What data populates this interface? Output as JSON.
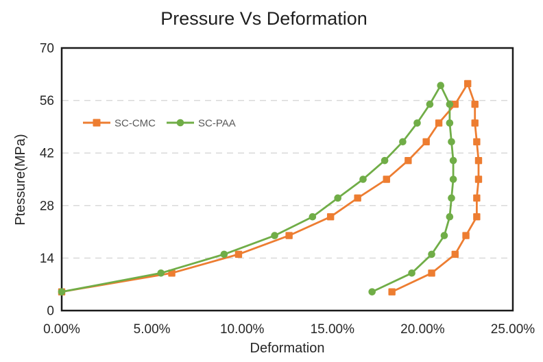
{
  "page": {
    "background_color": "#ffffff"
  },
  "chart_data": {
    "type": "line",
    "title": "Pressure Vs Deformation",
    "xlabel": "Deformation",
    "ylabel": "Ptessure(MPa)",
    "x_unit": "percent",
    "y_unit": "MPa",
    "xlim": [
      0,
      25
    ],
    "ylim": [
      0,
      70
    ],
    "x_tick_values": [
      0,
      5,
      10,
      15,
      20,
      25
    ],
    "x_tick_labels": [
      "0.00%",
      "5.00%",
      "10.00%",
      "15.00%",
      "20.00%",
      "25.00%"
    ],
    "y_tick_values": [
      0,
      14,
      28,
      42,
      56,
      70
    ],
    "y_tick_labels": [
      "0",
      "14",
      "28",
      "42",
      "56",
      "70"
    ],
    "grid": "horizontal dashed gridlines",
    "gridline_values": [
      14,
      28,
      42,
      56
    ],
    "gridline_color": "#d6d6d6",
    "plot_border_color": "#1a1a1a",
    "legend_position": "inside upper-left",
    "series": [
      {
        "name": "SC-CMC",
        "color": "#ED7D31",
        "marker": "square",
        "points": [
          [
            0.0,
            5
          ],
          [
            6.1,
            10
          ],
          [
            9.8,
            15
          ],
          [
            12.6,
            20
          ],
          [
            14.9,
            25
          ],
          [
            16.4,
            30
          ],
          [
            18.0,
            35
          ],
          [
            19.2,
            40
          ],
          [
            20.2,
            45
          ],
          [
            20.9,
            50
          ],
          [
            21.8,
            55
          ],
          [
            22.5,
            60.5
          ],
          [
            22.9,
            55
          ],
          [
            22.9,
            50
          ],
          [
            23.0,
            45
          ],
          [
            23.1,
            40
          ],
          [
            23.1,
            35
          ],
          [
            23.0,
            30
          ],
          [
            23.0,
            25
          ],
          [
            22.4,
            20
          ],
          [
            21.8,
            15
          ],
          [
            20.5,
            10
          ],
          [
            18.3,
            5
          ]
        ]
      },
      {
        "name": "SC-PAA",
        "color": "#70AD47",
        "marker": "circle",
        "points": [
          [
            0.0,
            5
          ],
          [
            5.5,
            10
          ],
          [
            9.0,
            15
          ],
          [
            11.8,
            20
          ],
          [
            13.9,
            25
          ],
          [
            15.3,
            30
          ],
          [
            16.7,
            35
          ],
          [
            17.9,
            40
          ],
          [
            18.9,
            45
          ],
          [
            19.7,
            50
          ],
          [
            20.4,
            55
          ],
          [
            21.0,
            60
          ],
          [
            21.5,
            55
          ],
          [
            21.5,
            50
          ],
          [
            21.6,
            45
          ],
          [
            21.7,
            40
          ],
          [
            21.7,
            35
          ],
          [
            21.6,
            30
          ],
          [
            21.5,
            25
          ],
          [
            21.2,
            20
          ],
          [
            20.5,
            15
          ],
          [
            19.4,
            10
          ],
          [
            17.2,
            5
          ]
        ]
      }
    ]
  }
}
